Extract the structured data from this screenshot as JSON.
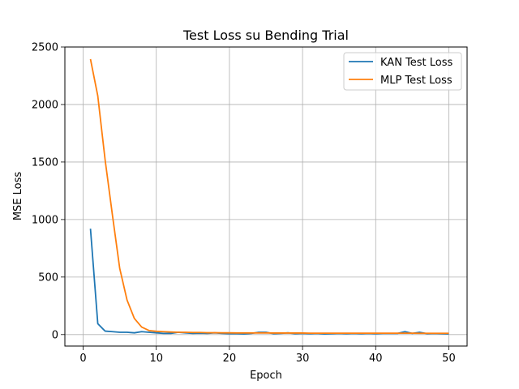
{
  "chart_data": {
    "type": "line",
    "title": "Test Loss su Bending Trial",
    "xlabel": "Epoch",
    "ylabel": "MSE Loss",
    "xlim": [
      -2.5,
      52.5
    ],
    "ylim": [
      -100,
      2500
    ],
    "xticks": [
      0,
      10,
      20,
      30,
      40,
      50
    ],
    "yticks": [
      0,
      500,
      1000,
      1500,
      2000,
      2500
    ],
    "grid": true,
    "legend_position": "top-right",
    "x": [
      1,
      2,
      3,
      4,
      5,
      6,
      7,
      8,
      9,
      10,
      11,
      12,
      13,
      14,
      15,
      16,
      17,
      18,
      19,
      20,
      21,
      22,
      23,
      24,
      25,
      26,
      27,
      28,
      29,
      30,
      31,
      32,
      33,
      34,
      35,
      36,
      37,
      38,
      39,
      40,
      41,
      42,
      43,
      44,
      45,
      46,
      47,
      48,
      49,
      50
    ],
    "series": [
      {
        "name": "KAN Test Loss",
        "color": "#1f77b4",
        "values": [
          920,
          95,
          30,
          25,
          20,
          20,
          15,
          25,
          20,
          15,
          10,
          10,
          20,
          15,
          10,
          12,
          10,
          15,
          10,
          8,
          8,
          5,
          10,
          20,
          20,
          8,
          10,
          15,
          8,
          10,
          8,
          10,
          5,
          8,
          10,
          8,
          10,
          8,
          10,
          8,
          10,
          10,
          10,
          25,
          10,
          20,
          8,
          10,
          8,
          5
        ]
      },
      {
        "name": "MLP Test Loss",
        "color": "#ff7f0e",
        "values": [
          2395,
          2075,
          1520,
          1040,
          575,
          300,
          140,
          65,
          35,
          28,
          25,
          22,
          20,
          20,
          18,
          18,
          16,
          16,
          15,
          15,
          14,
          14,
          14,
          14,
          14,
          13,
          13,
          13,
          13,
          13,
          12,
          12,
          12,
          12,
          12,
          12,
          12,
          12,
          12,
          12,
          12,
          12,
          12,
          12,
          12,
          11,
          11,
          11,
          11,
          11
        ]
      }
    ]
  }
}
